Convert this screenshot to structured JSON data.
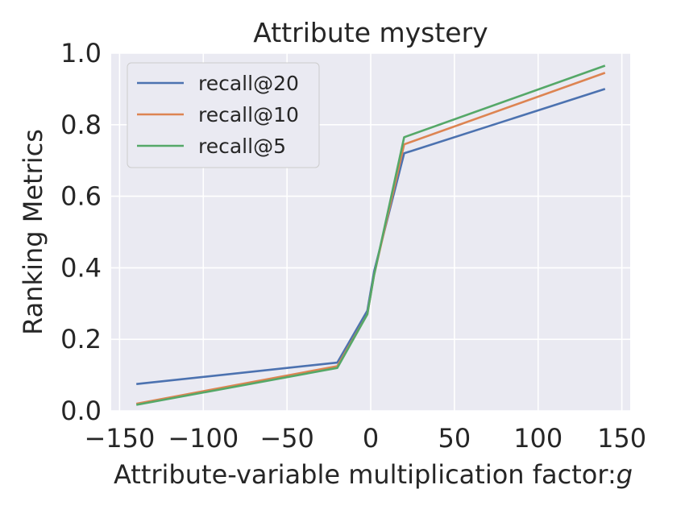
{
  "chart_data": {
    "type": "line",
    "title": "Attribute mystery",
    "xlabel": "Attribute-variable multiplication factor:",
    "xlabel_var": "g",
    "ylabel": "Ranking Metrics",
    "xlim": [
      -155,
      155
    ],
    "ylim": [
      0.0,
      1.0
    ],
    "x_ticks": [
      -150,
      -100,
      -50,
      0,
      50,
      100,
      150
    ],
    "x_tick_labels": [
      "−150",
      "−100",
      "−50",
      "0",
      "50",
      "100",
      "150"
    ],
    "y_ticks": [
      0.0,
      0.2,
      0.4,
      0.6,
      0.8,
      1.0
    ],
    "y_tick_labels": [
      "0.0",
      "0.2",
      "0.4",
      "0.6",
      "0.8",
      "1.0"
    ],
    "grid": true,
    "legend_position": "top-left",
    "x": [
      -140,
      -20,
      -2,
      2,
      20,
      140
    ],
    "series": [
      {
        "name": "recall@20",
        "color": "#4c72b0",
        "values": [
          0.075,
          0.135,
          0.28,
          0.39,
          0.72,
          0.9
        ]
      },
      {
        "name": "recall@10",
        "color": "#dd8452",
        "values": [
          0.02,
          0.125,
          0.27,
          0.38,
          0.745,
          0.945
        ]
      },
      {
        "name": "recall@5",
        "color": "#55a868",
        "values": [
          0.017,
          0.12,
          0.27,
          0.38,
          0.765,
          0.965
        ]
      }
    ]
  }
}
